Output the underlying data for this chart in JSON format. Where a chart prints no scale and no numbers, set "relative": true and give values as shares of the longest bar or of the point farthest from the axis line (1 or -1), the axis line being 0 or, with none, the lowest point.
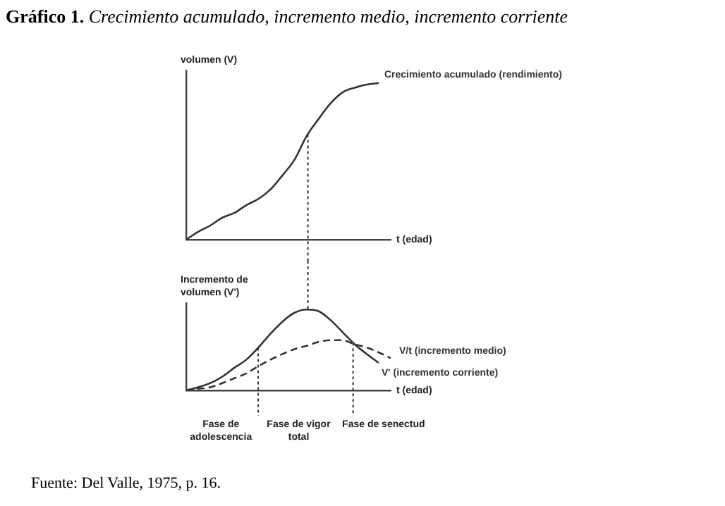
{
  "chart_data": [
    {
      "type": "line",
      "title": "Gráfico 1. Crecimiento acumulado, incremento medio, incremento corriente",
      "xlabel": "t (edad)",
      "ylabel": "volumen (V)",
      "relative": true,
      "grid": false,
      "legend": false,
      "tick_labels": false,
      "marker": "none",
      "categories": [
        null,
        null,
        null,
        null,
        null,
        null,
        null,
        null,
        null,
        null,
        null,
        null,
        null,
        null,
        null,
        null,
        null,
        null
      ],
      "series": [
        {
          "name": "Crecimiento acumulado (rendimiento)",
          "color": "#333333",
          "line_style": "solid",
          "values": [
            0,
            0.05,
            0.09,
            0.14,
            0.17,
            0.22,
            0.26,
            0.32,
            0.41,
            0.51,
            0.66,
            0.77,
            0.87,
            0.94,
            0.97,
            0.99,
            1,
            null
          ]
        }
      ]
    },
    {
      "type": "line",
      "xlabel": "t (edad)",
      "ylabel": "Incremento de volumen (V')",
      "relative": true,
      "grid": false,
      "legend": false,
      "tick_labels": false,
      "marker": "none",
      "categories": [
        null,
        null,
        null,
        null,
        null,
        null,
        null,
        null,
        null,
        null,
        null,
        null,
        null,
        null,
        null,
        null,
        null,
        null
      ],
      "series": [
        {
          "name": "V/t (incremento medio)",
          "color": "#333333",
          "line_style": "dashed",
          "values": [
            0,
            0.02,
            0.04,
            0.09,
            0.15,
            0.21,
            0.3,
            0.38,
            0.45,
            0.51,
            0.55,
            0.6,
            0.62,
            0.62,
            0.57,
            0.53,
            0.47,
            0.4
          ]
        },
        {
          "name": "V' (incremento corriente)",
          "color": "#333333",
          "line_style": "solid",
          "values": [
            0,
            0.04,
            0.09,
            0.17,
            0.28,
            0.38,
            0.53,
            0.7,
            0.85,
            0.96,
            1,
            0.98,
            0.87,
            0.72,
            0.57,
            0.45,
            0.34,
            null
          ]
        }
      ],
      "annotations": [
        "Fase de adolescencia",
        "Fase de vigor total",
        "Fase de senectud",
        "Fuente: Del Valle, 1975, p. 16."
      ]
    }
  ]
}
